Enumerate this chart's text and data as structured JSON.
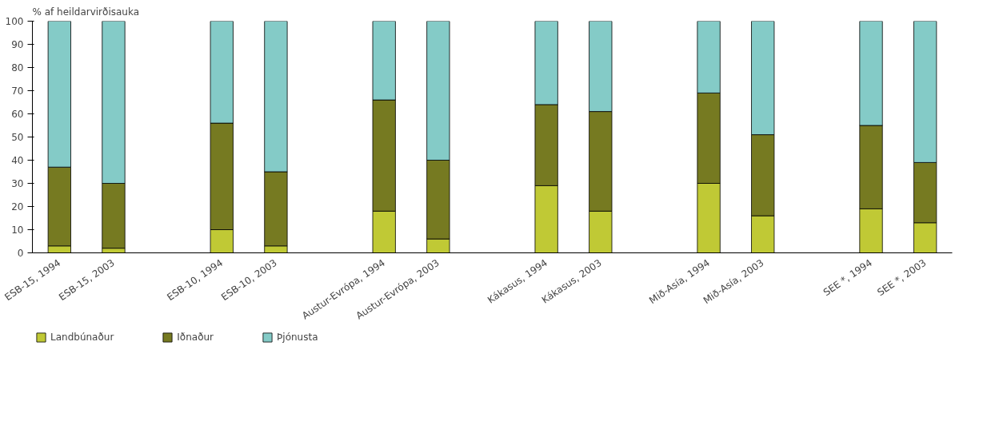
{
  "chart_data": {
    "type": "bar",
    "stacked": true,
    "ylabel": "% af heildarvirðisauka",
    "categories": [
      "ESB-15, 1994",
      "ESB-15, 2003",
      null,
      "ESB-10, 1994",
      "ESB-10, 2003",
      null,
      "Austur-Evrópa, 1994",
      "Austur-Evrópa, 2003",
      null,
      "Kákasus, 1994",
      "Kákasus, 2003",
      null,
      "Mið-Asía, 1994",
      "Mið-Asía, 2003",
      null,
      "SEE *, 1994",
      "SEE *, 2003"
    ],
    "series": [
      {
        "name": "Landbúnaður",
        "color": "#c0c935",
        "values": [
          3,
          2,
          null,
          10,
          3,
          null,
          18,
          6,
          null,
          29,
          18,
          null,
          30,
          16,
          null,
          19,
          13
        ]
      },
      {
        "name": "Iðnaður",
        "color": "#767a21",
        "values": [
          34,
          28,
          null,
          46,
          32,
          null,
          48,
          34,
          null,
          35,
          43,
          null,
          39,
          35,
          null,
          36,
          26
        ]
      },
      {
        "name": "Þjónusta",
        "color": "#84cbc7",
        "values": [
          63,
          70,
          null,
          44,
          65,
          null,
          34,
          60,
          null,
          36,
          39,
          null,
          31,
          49,
          null,
          45,
          61
        ]
      }
    ],
    "ylim": [
      0,
      100
    ],
    "yticks": [
      0,
      10,
      20,
      30,
      40,
      50,
      60,
      70,
      80,
      90,
      100
    ],
    "grid": false,
    "legend": "bottom left"
  }
}
